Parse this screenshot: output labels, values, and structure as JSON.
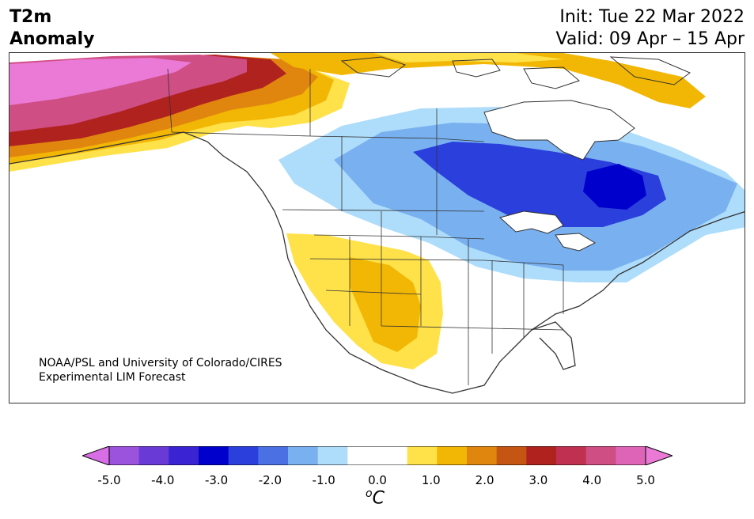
{
  "title": {
    "line1": "T2m",
    "line2": "Anomaly"
  },
  "info": {
    "init": "Init: Tue 22 Mar 2022",
    "valid": "Valid: 09 Apr – 15 Apr"
  },
  "credit": {
    "line1": "NOAA/PSL and University of Colorado/CIRES",
    "line2": "Experimental LIM Forecast"
  },
  "colorbar": {
    "colors": [
      "#d86ee6",
      "#9b52dc",
      "#6a3ad6",
      "#3a23d2",
      "#0000cc",
      "#2a3fdb",
      "#4a70e4",
      "#79b1f0",
      "#aedcfb",
      "#ffffff",
      "#ffffff",
      "#ffe14a",
      "#f2b705",
      "#e0860e",
      "#c45512",
      "#b0221e",
      "#c03050",
      "#cf4e83",
      "#dd64b6",
      "#ea7ad6"
    ],
    "ticks": [
      "-5.0",
      "-4.0",
      "-3.0",
      "-2.0",
      "-1.0",
      "0.0",
      "1.0",
      "2.0",
      "3.0",
      "4.0",
      "5.0"
    ],
    "unit_sup": "o",
    "unit": "C"
  }
}
